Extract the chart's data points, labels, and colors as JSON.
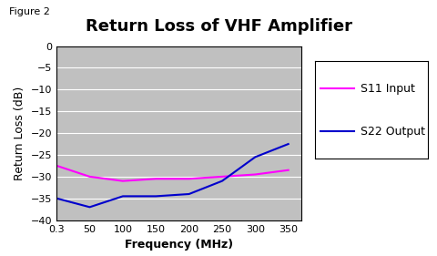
{
  "title": "Return Loss of VHF Amplifier",
  "figure_label": "Figure 2",
  "xlabel": "Frequency (MHz)",
  "ylabel": "Return Loss (dB)",
  "ylim": [
    -40,
    0
  ],
  "yticks": [
    0,
    -5,
    -10,
    -15,
    -20,
    -25,
    -30,
    -35,
    -40
  ],
  "xtick_labels": [
    "0.3",
    "50",
    "100",
    "150",
    "200",
    "250",
    "300",
    "350"
  ],
  "xtick_values": [
    0.3,
    50,
    100,
    150,
    200,
    250,
    300,
    350
  ],
  "s11_x": [
    0.3,
    50,
    100,
    150,
    200,
    250,
    300,
    350
  ],
  "s11_y": [
    -27.5,
    -30.0,
    -31.0,
    -30.5,
    -30.5,
    -30.0,
    -29.5,
    -28.5
  ],
  "s22_x": [
    0.3,
    50,
    100,
    150,
    200,
    250,
    300,
    350
  ],
  "s22_y": [
    -35.0,
    -37.0,
    -34.5,
    -34.5,
    -34.0,
    -31.0,
    -25.5,
    -22.5
  ],
  "s11_color": "#FF00FF",
  "s22_color": "#0000CC",
  "s11_label": "S11 Input",
  "s22_label": "S22 Output",
  "plot_bg_color": "#C0C0C0",
  "outer_bg_color": "#FFFFFF",
  "grid_color": "#FFFFFF",
  "title_fontsize": 13,
  "axis_label_fontsize": 9,
  "tick_fontsize": 8,
  "legend_fontsize": 9,
  "figure_label_fontsize": 8,
  "xlim": [
    0.3,
    370
  ]
}
